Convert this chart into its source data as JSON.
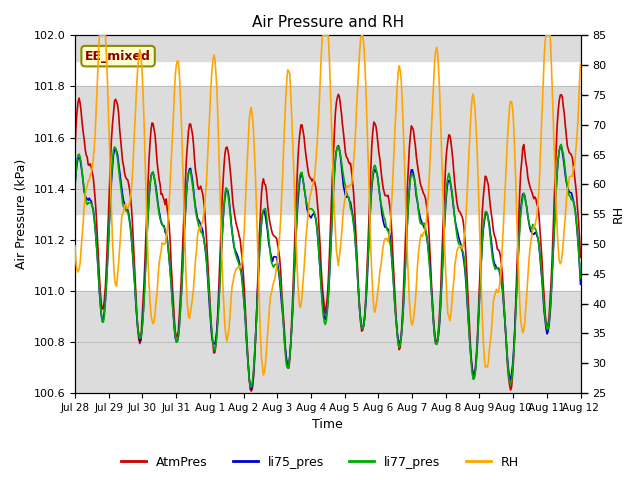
{
  "title": "Air Pressure and RH",
  "xlabel": "Time",
  "ylabel_left": "Air Pressure (kPa)",
  "ylabel_right": "RH",
  "ylim_left": [
    100.6,
    102.0
  ],
  "ylim_right": [
    25,
    85
  ],
  "yticks_left": [
    100.6,
    100.8,
    101.0,
    101.2,
    101.4,
    101.6,
    101.8,
    102.0
  ],
  "yticks_right": [
    25,
    30,
    35,
    40,
    45,
    50,
    55,
    60,
    65,
    70,
    75,
    80,
    85
  ],
  "xticklabels": [
    "Jul 28",
    "Jul 29",
    "Jul 30",
    "Jul 31",
    "Aug 1",
    "Aug 2",
    "Aug 3",
    "Aug 4",
    "Aug 5",
    "Aug 6",
    "Aug 7",
    "Aug 8",
    "Aug 9",
    "Aug 10",
    "Aug 11",
    "Aug 12"
  ],
  "annotation_text": "EE_mixed",
  "annotation_color": "#8B0000",
  "annotation_bbox_facecolor": "#FFFFD0",
  "annotation_bbox_edgecolor": "#8B8B00",
  "colors": {
    "AtmPres": "#CC0000",
    "li75_pres": "#0000CC",
    "li77_pres": "#00AA00",
    "RH": "#FFA500"
  },
  "linewidths": {
    "AtmPres": 1.2,
    "li75_pres": 1.2,
    "li77_pres": 1.2,
    "RH": 1.2
  },
  "hspan_regions": [
    [
      100.6,
      101.0,
      "#DCDCDC"
    ],
    [
      101.3,
      101.8,
      "#DCDCDC"
    ],
    [
      101.9,
      102.0,
      "#DCDCDC"
    ]
  ],
  "background_color": "#FFFFFF",
  "plot_bg_color": "#FFFFFF",
  "n_points": 500,
  "n_days": 15
}
